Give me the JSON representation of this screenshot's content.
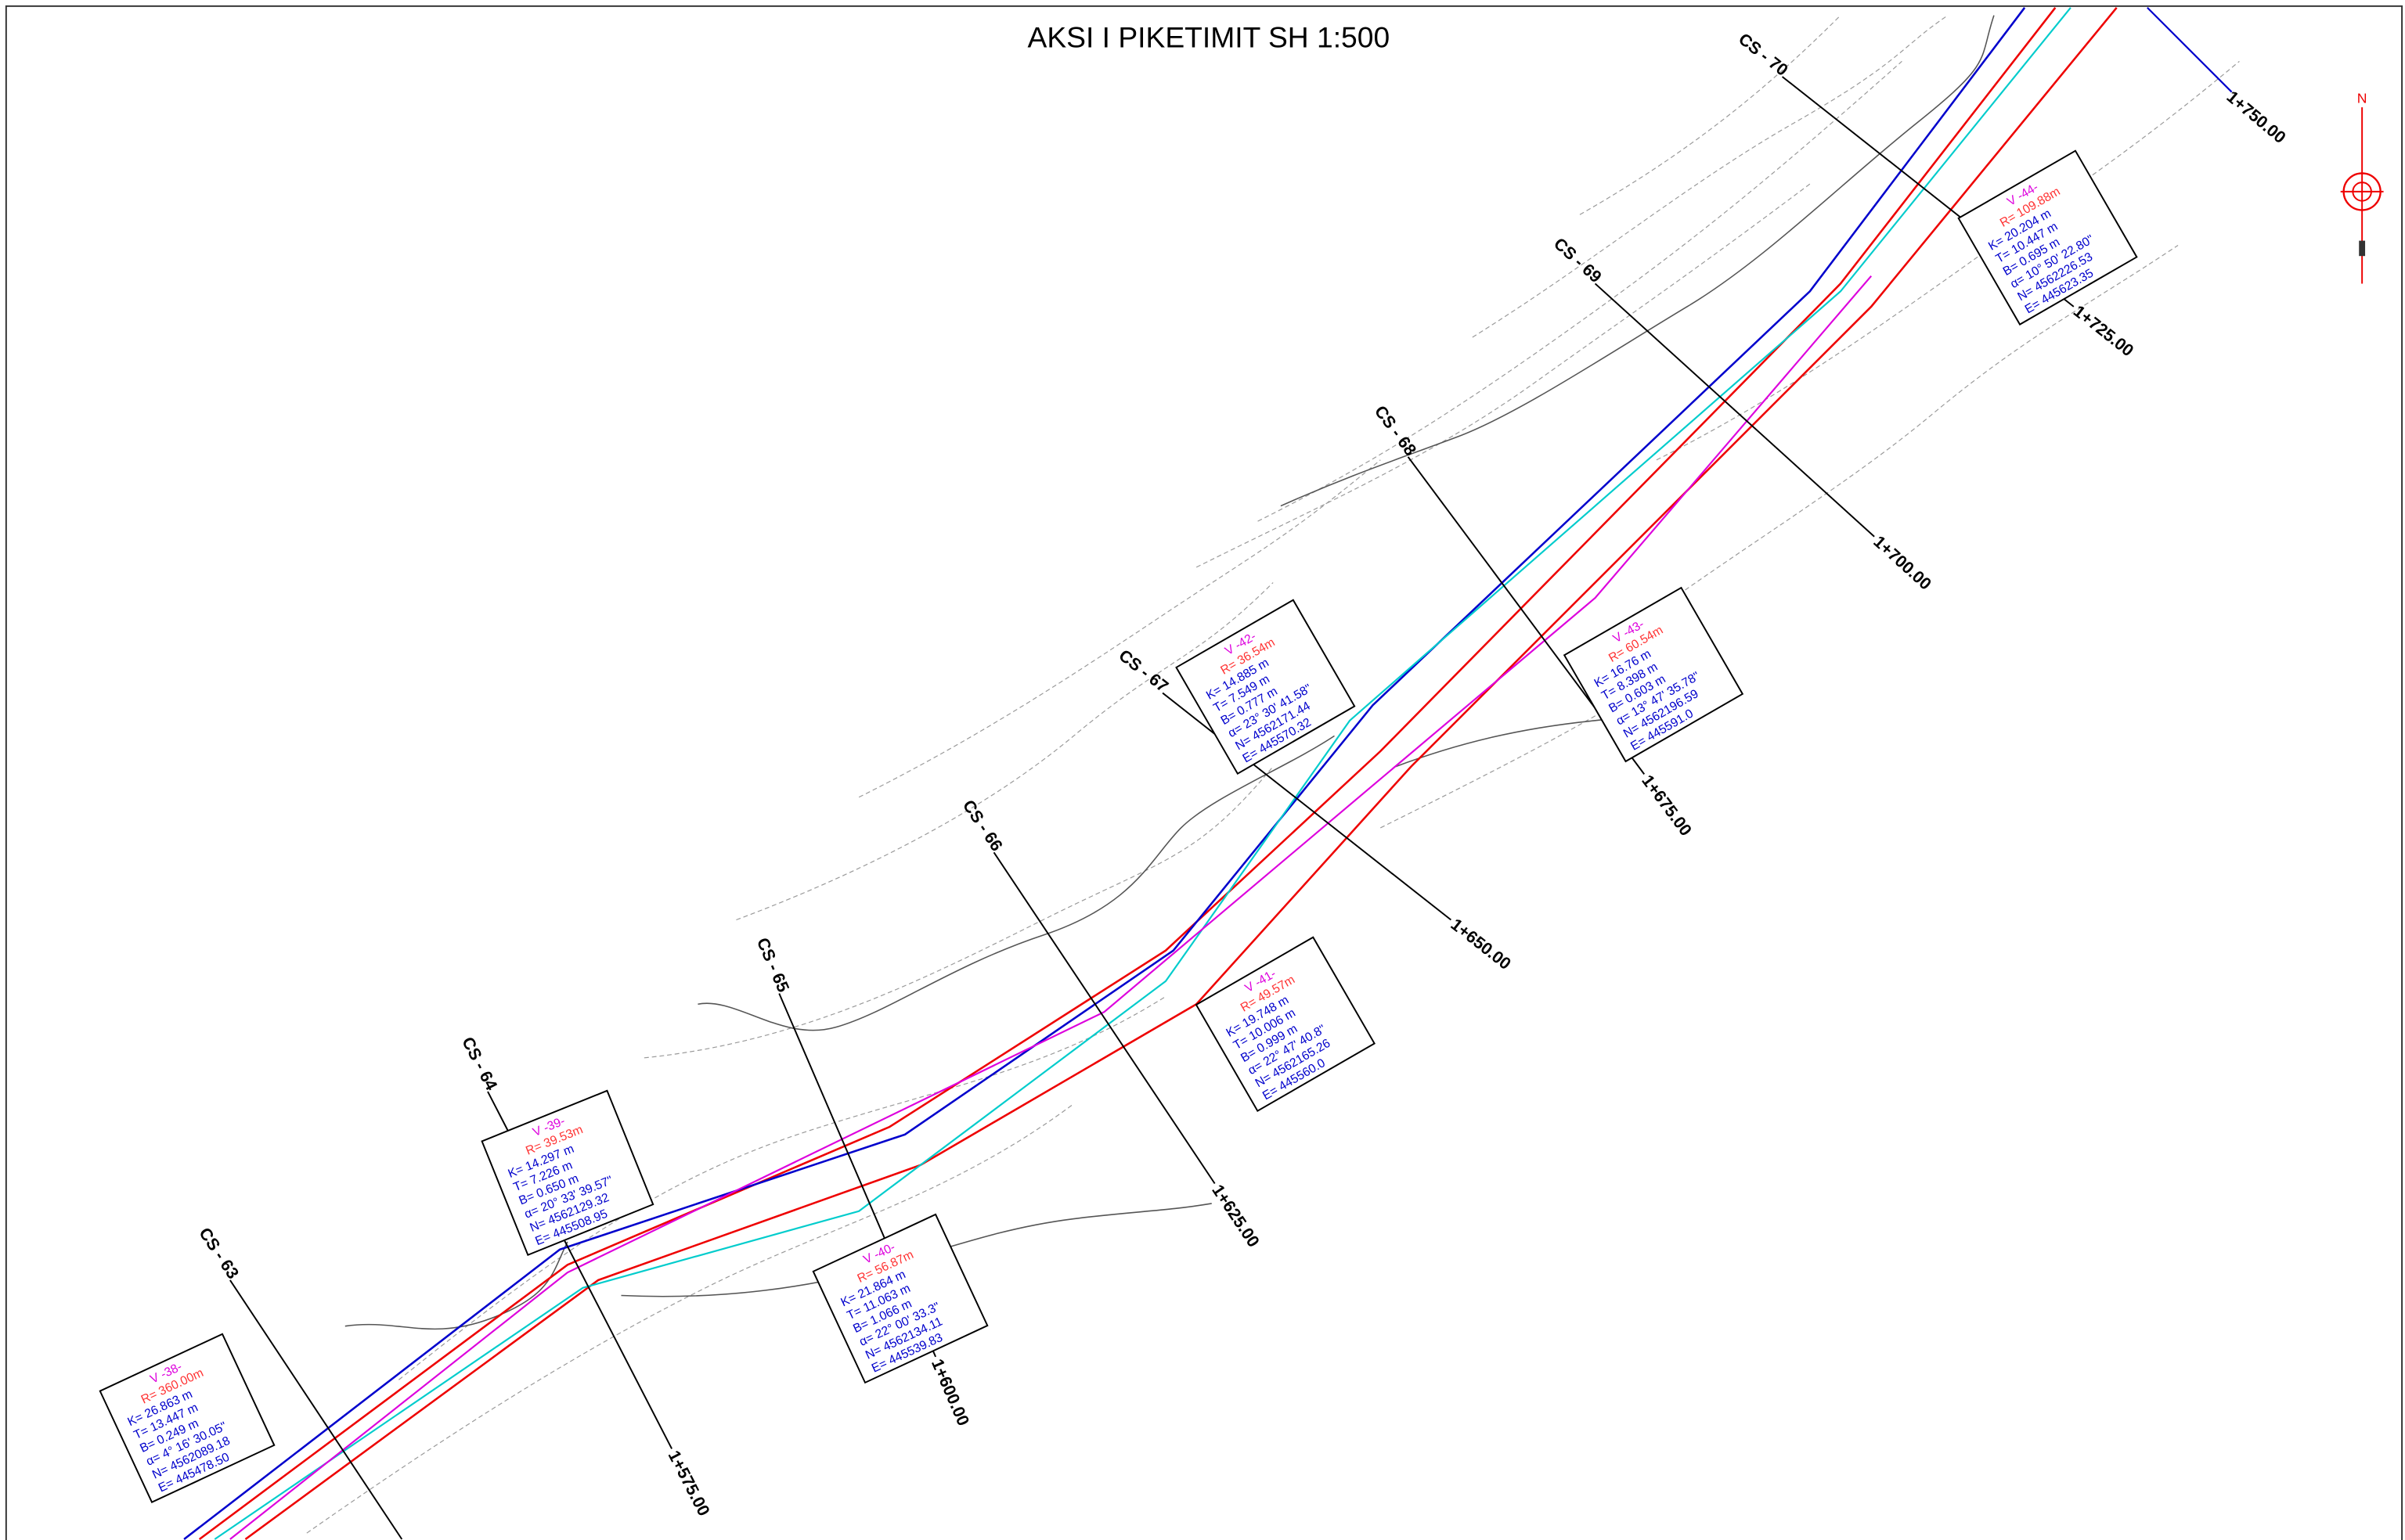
{
  "header": {
    "title": "AKSI I PIKETIMIT  SH 1:500"
  },
  "sections": [
    {
      "label": "CS - 63",
      "chainage": null
    },
    {
      "label": "CS - 64",
      "chainage": "1+575.00"
    },
    {
      "label": "CS - 65",
      "chainage": "1+600.00"
    },
    {
      "label": "CS - 66",
      "chainage": "1+625.00"
    },
    {
      "label": "CS - 67",
      "chainage": "1+650.00"
    },
    {
      "label": "CS - 68",
      "chainage": "1+675.00"
    },
    {
      "label": "CS - 69",
      "chainage": "1+700.00"
    },
    {
      "label": "CS - 70",
      "chainage": "1+725.00"
    },
    {
      "label": null,
      "chainage": "1+750.00"
    }
  ],
  "curves": [
    {
      "lines": [
        "V -38-",
        "R= 360.00m",
        "K= 26.863 m",
        "T= 13.447 m",
        "B= 0.249 m",
        "α= 4° 16' 30.05\"",
        "N= 4562089.18",
        "E= 445478.50"
      ]
    },
    {
      "lines": [
        "V -39-",
        "R= 39.53m",
        "K= 14.297 m",
        "T= 7.226 m",
        "B= 0.650 m",
        "α= 20° 33' 39.57\"",
        "N= 4562129.32",
        "E= 445508.95"
      ]
    },
    {
      "lines": [
        "V -40-",
        "R= 56.87m",
        "K= 21.864 m",
        "T= 11.063 m",
        "B= 1.066 m",
        "α= 22° 00' 33.3\"",
        "N= 4562134.11",
        "E= 445539.83"
      ]
    },
    {
      "lines": [
        "V -41-",
        "R= 49.57m",
        "K= 19.748 m",
        "T= 10.006 m",
        "B= 0.999 m",
        "α= 22° 47' 40.8\"",
        "N= 4562165.26",
        "E= 445560.0"
      ]
    },
    {
      "lines": [
        "V -42-",
        "R= 36.54m",
        "K= 14.885 m",
        "T= 7.549 m",
        "B= 0.777 m",
        "α= 23° 30' 41.58\"",
        "N= 4562171.44",
        "E= 445570.32"
      ]
    },
    {
      "lines": [
        "V -43-",
        "R= 60.54m",
        "K= 16.76 m",
        "T= 8.398 m",
        "B= 0.603 m",
        "α= 13° 47' 35.78\"",
        "N= 4562196.59",
        "E= 445591.0"
      ]
    },
    {
      "lines": [
        "V -44-",
        "R= 109.88m",
        "K= 20.204 m",
        "T= 10.447 m",
        "B= 0.695 m",
        "α= 10° 50' 22.80\"",
        "N= 4562226.53",
        "E= 445623.35"
      ]
    }
  ]
}
